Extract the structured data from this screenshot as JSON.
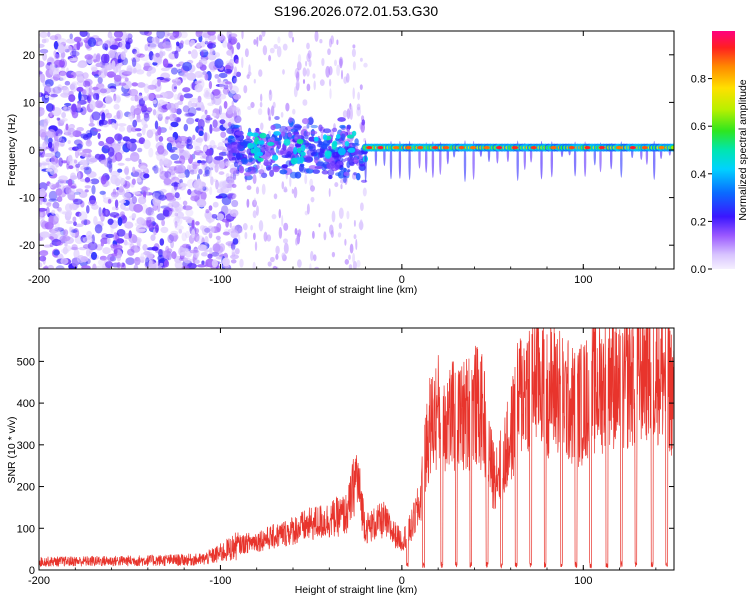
{
  "title": "S196.2026.072.01.53.G30",
  "colors": {
    "snr_line": "#e8342c",
    "frame": "#000000",
    "background": "#ffffff",
    "colormap": [
      "#f5f0ff",
      "#d8c4ff",
      "#9b59ff",
      "#5a12e6",
      "#1f1fff",
      "#00b4ff",
      "#00e5e5",
      "#00e676",
      "#c8ff00",
      "#ffd400",
      "#ff7a00",
      "#ff1a1a",
      "#ff007f"
    ]
  },
  "chart_data": [
    {
      "type": "heatmap",
      "name": "spectrogram",
      "xlabel": "Height of straight line (km)",
      "ylabel": "Frequency (Hz)",
      "xlim": [
        -200,
        150
      ],
      "ylim": [
        -25,
        25
      ],
      "xticks": [
        "-200",
        "-100",
        "0",
        "100"
      ],
      "xtick_values": [
        -200,
        -100,
        0,
        100
      ],
      "yticks": [
        "20",
        "10",
        "0",
        "-10",
        "-20"
      ],
      "ytick_values": [
        20,
        10,
        0,
        -10,
        -20
      ],
      "colorbar": {
        "label": "Normalized spectral amplitude",
        "range": [
          0,
          1
        ],
        "ticks": [
          "0.0",
          "0.2",
          "0.4",
          "0.6",
          "0.8"
        ],
        "tick_values": [
          0.0,
          0.2,
          0.4,
          0.6,
          0.8
        ]
      },
      "description_values": {
        "noise_region_km": [
          -200,
          -95
        ],
        "transition_region_km": [
          -95,
          -20
        ],
        "stable_line_region_km": [
          -20,
          150
        ],
        "stable_line_frequency_hz": 0.5,
        "peak_amplitude": 0.95
      }
    },
    {
      "type": "line",
      "name": "snr",
      "xlabel": "Height of straight line (km)",
      "ylabel": "SNR (10 * v/v)",
      "xlim": [
        -200,
        150
      ],
      "ylim": [
        0,
        580
      ],
      "xticks": [
        "-200",
        "-100",
        "0",
        "100"
      ],
      "xtick_values": [
        -200,
        -100,
        0,
        100
      ],
      "yticks": [
        "0",
        "100",
        "200",
        "300",
        "400",
        "500"
      ],
      "ytick_values": [
        0,
        100,
        200,
        300,
        400,
        500
      ],
      "series": [
        {
          "name": "SNR",
          "color": "#e8342c",
          "x": [
            -200,
            -150,
            -110,
            -100,
            -90,
            -80,
            -70,
            -60,
            -50,
            -40,
            -30,
            -25,
            -20,
            -15,
            -10,
            -5,
            0,
            5,
            10,
            15,
            20,
            25,
            30,
            35,
            40,
            45,
            50,
            55,
            60,
            65,
            70,
            75,
            80,
            85,
            90,
            95,
            100,
            105,
            110,
            115,
            120,
            125,
            130,
            135,
            140,
            145,
            150
          ],
          "y": [
            20,
            22,
            25,
            40,
            60,
            70,
            80,
            95,
            110,
            120,
            135,
            230,
            100,
            110,
            120,
            90,
            70,
            100,
            160,
            340,
            380,
            370,
            360,
            370,
            400,
            370,
            230,
            250,
            320,
            420,
            450,
            470,
            430,
            440,
            410,
            390,
            400,
            430,
            440,
            480,
            420,
            460,
            470,
            490,
            480,
            470,
            420
          ]
        }
      ],
      "dropouts_km": [
        3,
        12,
        22,
        30,
        38,
        47,
        55,
        63,
        71,
        79,
        88,
        96,
        104,
        113,
        121,
        129,
        138,
        146
      ]
    }
  ]
}
